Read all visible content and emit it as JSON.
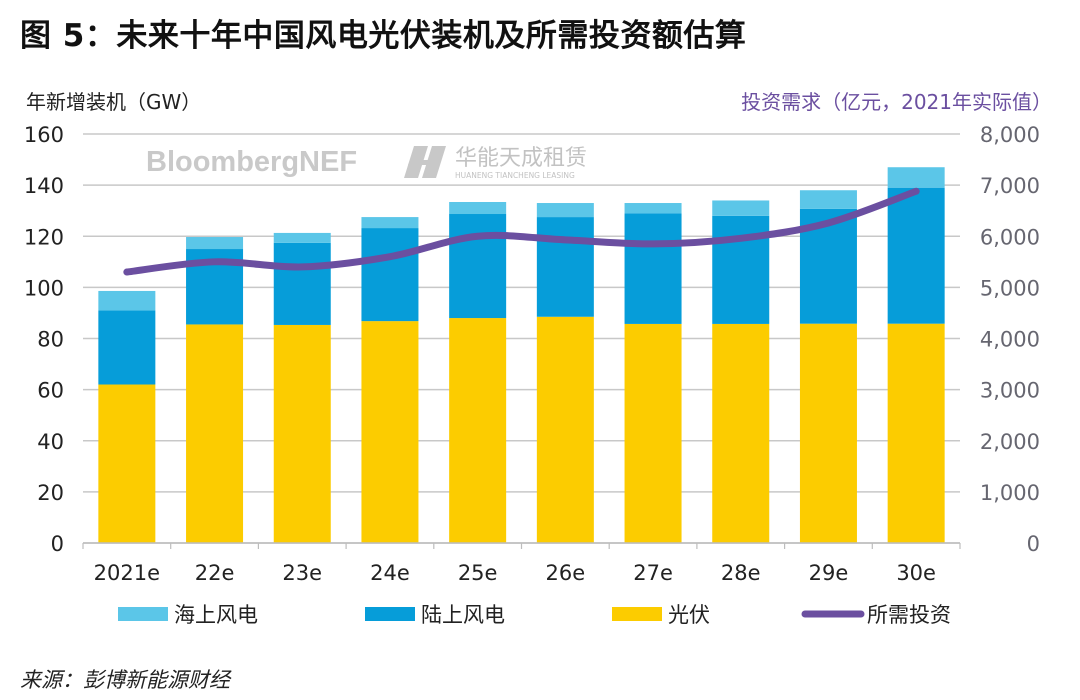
{
  "title": "图 5：未来十年中国风电光伏装机及所需投资额估算",
  "source": "来源：彭博新能源财经",
  "watermarks": {
    "bnef": "BloombergNEF",
    "huaneng_cn": "华能天成租赁",
    "huaneng_en": "HUANENG TIANCHENG LEASING"
  },
  "colors": {
    "offshore_wind": "#5bc6e8",
    "onshore_wind": "#069dd9",
    "solar": "#fccc00",
    "investment": "#6b4fa0",
    "grid": "#c8c8c8"
  },
  "chart_data": {
    "type": "bar",
    "stacked": true,
    "title": "未来十年中国风电光伏装机及所需投资额估算",
    "xlabel": "",
    "ylabel": "年新增装机（GW）",
    "ylabel_right": "投资需求（亿元，2021年实际值）",
    "ylim": [
      0,
      160
    ],
    "ylim_right": [
      0,
      8000
    ],
    "yticks": [
      "0",
      "20",
      "40",
      "60",
      "80",
      "100",
      "120",
      "140",
      "160"
    ],
    "yticks_right": [
      "0",
      "1,000",
      "2,000",
      "3,000",
      "4,000",
      "5,000",
      "6,000",
      "7,000",
      "8,000"
    ],
    "grid": true,
    "legend_position": "bottom",
    "categories": [
      "2021e",
      "22e",
      "23e",
      "24e",
      "25e",
      "26e",
      "27e",
      "28e",
      "29e",
      "30e"
    ],
    "series": [
      {
        "name": "光伏",
        "type": "bar",
        "axis": "left",
        "color_key": "solar",
        "values": [
          62,
          85.5,
          85.3,
          86.8,
          88,
          88.5,
          85.7,
          85.7,
          85.8,
          85.8
        ]
      },
      {
        "name": "陆上风电",
        "type": "bar",
        "axis": "left",
        "color_key": "onshore_wind",
        "values": [
          29,
          29.5,
          32.1,
          36.4,
          40.7,
          39,
          43.3,
          42.3,
          44.9,
          53.2
        ]
      },
      {
        "name": "海上风电",
        "type": "bar",
        "axis": "left",
        "color_key": "offshore_wind",
        "values": [
          7.6,
          4.7,
          3.9,
          4.3,
          4.7,
          5.5,
          4,
          6,
          7.3,
          8
        ]
      },
      {
        "name": "所需投资",
        "type": "line",
        "axis": "right",
        "color_key": "investment",
        "values": [
          5300,
          5500,
          5400,
          5600,
          6000,
          5930,
          5850,
          5960,
          6260,
          6880
        ]
      }
    ],
    "legend": [
      {
        "label": "海上风电",
        "color_key": "offshore_wind",
        "kind": "box"
      },
      {
        "label": "陆上风电",
        "color_key": "onshore_wind",
        "kind": "box"
      },
      {
        "label": "光伏",
        "color_key": "solar",
        "kind": "box"
      },
      {
        "label": "所需投资",
        "color_key": "investment",
        "kind": "line"
      }
    ]
  }
}
